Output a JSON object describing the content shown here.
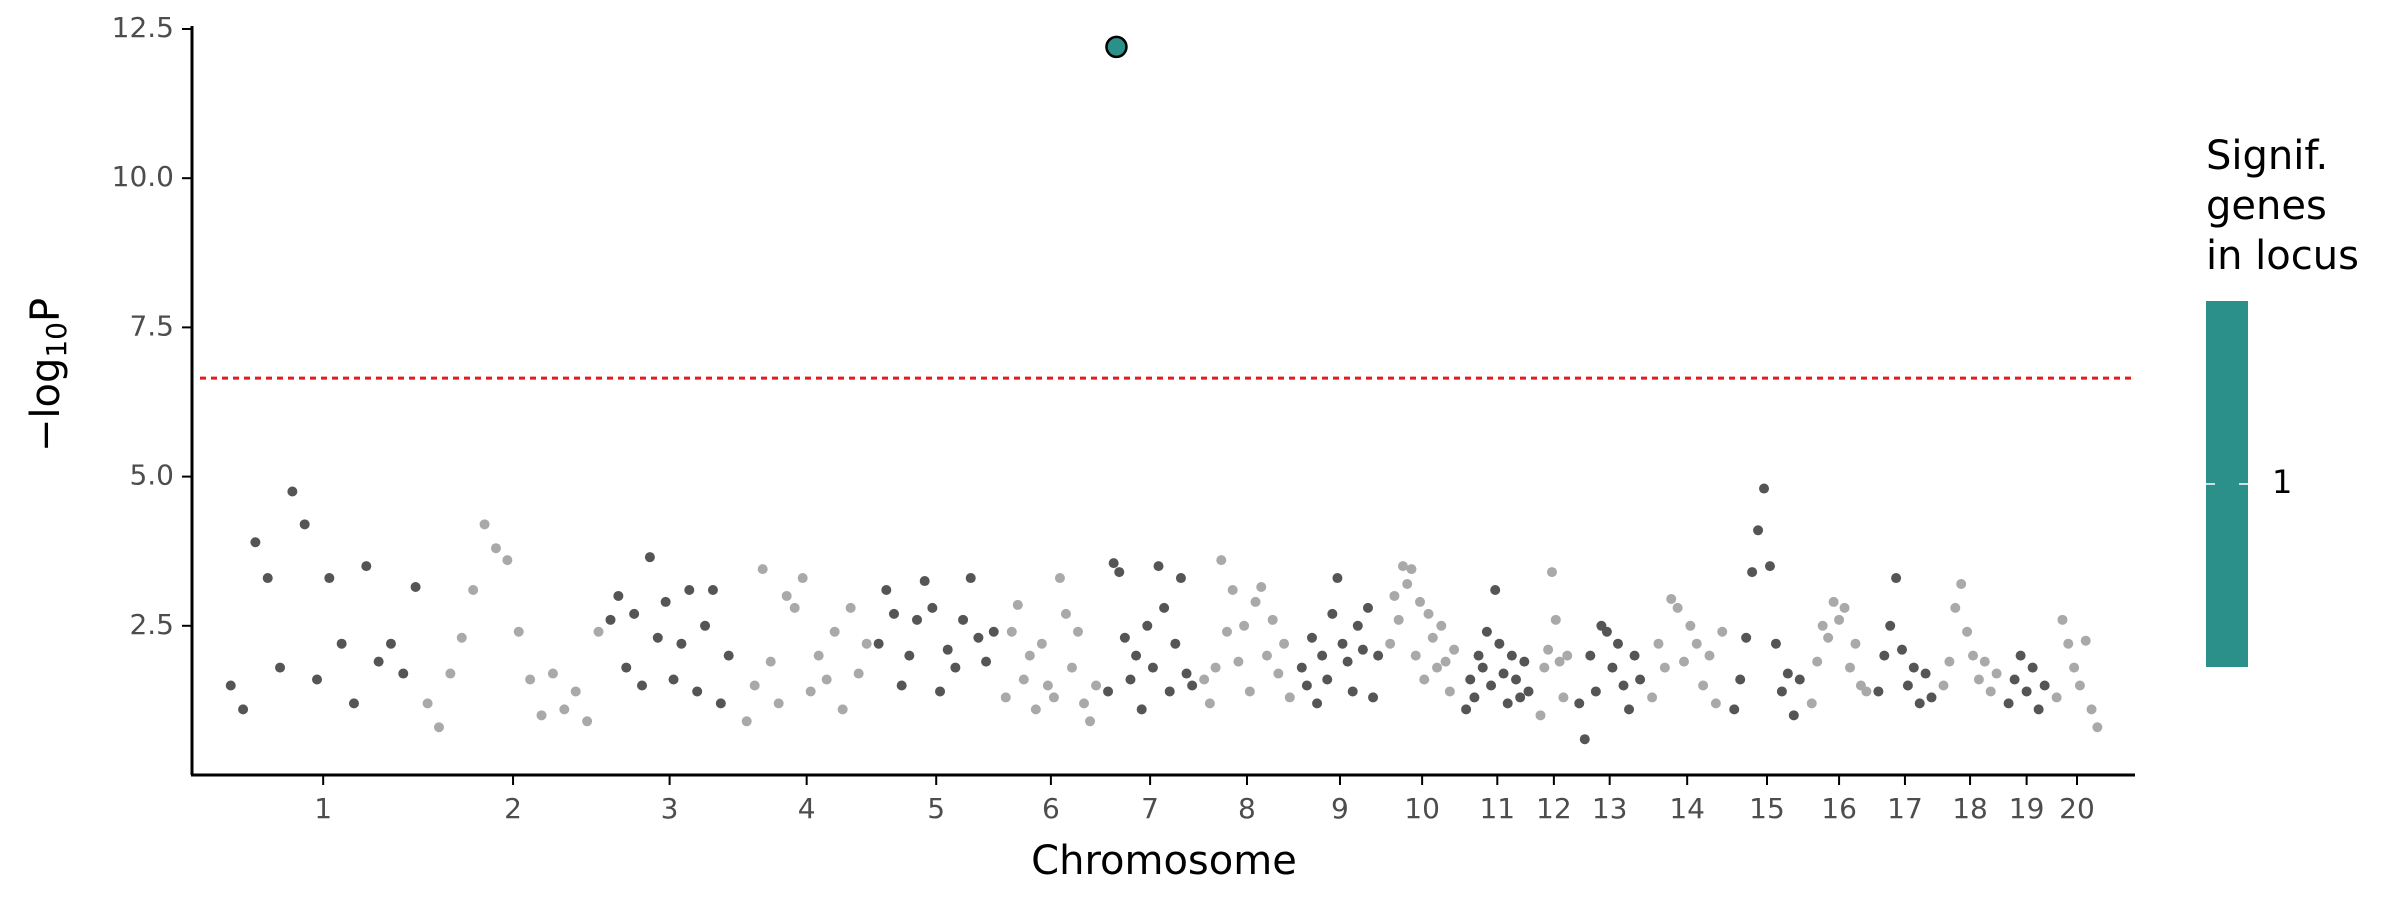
{
  "chart_data": {
    "type": "manhattan",
    "xlabel": "Chromosome",
    "ylabel": [
      "−log",
      "10",
      "P"
    ],
    "ylim": [
      0,
      12.55
    ],
    "yticks": [
      2.5,
      {
        "value": 5,
        "label": "5.0"
      },
      {
        "value": 7.5,
        "label": "7.5"
      },
      {
        "value": 10,
        "label": "10.0"
      },
      12.5
    ],
    "colors": [
      "#555555",
      "#a9a9a9"
    ],
    "threshold": {
      "value": 6.65,
      "color": "#e41a1c"
    },
    "highlight": {
      "category": "7",
      "value": 12.2,
      "color": "#2a9089"
    },
    "legend": {
      "title": [
        "Signif.",
        "genes",
        "in locus"
      ],
      "ticks": [
        1
      ],
      "color": "#2a9089"
    },
    "categories": [
      "1",
      "2",
      "3",
      "4",
      "5",
      "6",
      "7",
      "8",
      "9",
      "10",
      "11",
      "12",
      "13",
      "14",
      "15",
      "16",
      "17",
      "18",
      "19",
      "20"
    ],
    "values": [
      [
        1.5,
        1.1,
        3.9,
        3.3,
        1.8,
        4.75,
        4.2,
        1.6,
        3.3,
        2.2,
        1.2,
        3.5,
        1.9,
        2.2,
        1.7,
        3.15
      ],
      [
        1.2,
        0.8,
        1.7,
        2.3,
        3.1,
        4.2,
        3.8,
        3.6,
        2.4,
        1.6,
        1.0,
        1.7,
        1.1,
        1.4,
        0.9,
        2.4
      ],
      [
        2.6,
        3.0,
        1.8,
        2.7,
        1.5,
        3.65,
        2.3,
        2.9,
        1.6,
        2.2,
        3.1,
        1.4,
        2.5,
        3.1,
        1.2,
        2.0
      ],
      [
        0.9,
        1.5,
        3.45,
        1.9,
        1.2,
        3.0,
        2.8,
        3.3,
        1.4,
        2.0,
        1.6,
        2.4,
        1.1,
        2.8,
        1.7,
        2.2
      ],
      [
        2.2,
        3.1,
        2.7,
        1.5,
        2.0,
        2.6,
        3.25,
        2.8,
        1.4,
        2.1,
        1.8,
        2.6,
        3.3,
        2.3,
        1.9,
        2.4
      ],
      [
        1.3,
        2.4,
        2.85,
        1.6,
        2.0,
        1.1,
        2.2,
        1.5,
        1.3,
        3.3,
        2.7,
        1.8,
        2.4,
        1.2,
        0.9,
        1.5
      ],
      [
        1.4,
        3.55,
        3.4,
        2.3,
        1.6,
        2.0,
        1.1,
        2.5,
        1.8,
        3.5,
        2.8,
        1.4,
        2.2,
        3.3,
        1.7,
        1.5
      ],
      [
        1.6,
        1.2,
        1.8,
        3.6,
        2.4,
        3.1,
        1.9,
        2.5,
        1.4,
        2.9,
        3.15,
        2.0,
        2.6,
        1.7,
        2.2,
        1.3
      ],
      [
        1.8,
        1.5,
        2.3,
        1.2,
        2.0,
        1.6,
        2.7,
        3.3,
        2.2,
        1.9,
        1.4,
        2.5,
        2.1,
        2.8,
        1.3,
        2.0
      ],
      [
        2.2,
        3.0,
        2.6,
        3.5,
        3.2,
        3.45,
        2.0,
        2.9,
        1.6,
        2.7,
        2.3,
        1.8,
        2.5,
        1.9,
        1.4,
        2.1
      ],
      [
        1.1,
        1.6,
        1.3,
        2.0,
        1.8,
        2.4,
        1.5,
        3.1,
        2.2,
        1.7,
        1.2,
        2.0,
        1.6,
        1.3,
        1.9,
        1.4
      ],
      [
        1.0,
        1.8,
        2.1,
        3.4,
        2.6,
        1.9,
        1.3,
        2.0
      ],
      [
        1.2,
        0.6,
        2.0,
        1.4,
        2.5,
        2.4,
        1.8,
        2.2,
        1.5,
        1.1,
        2.0,
        1.6
      ],
      [
        1.3,
        2.2,
        1.8,
        2.95,
        2.8,
        1.9,
        2.5,
        2.2,
        1.5,
        2.0,
        1.2,
        2.4
      ],
      [
        1.1,
        1.6,
        2.3,
        3.4,
        4.1,
        4.8,
        3.5,
        2.2,
        1.4,
        1.7,
        1.0,
        1.6
      ],
      [
        1.2,
        1.9,
        2.5,
        2.3,
        2.9,
        2.6,
        2.8,
        1.8,
        2.2,
        1.5,
        1.4
      ],
      [
        1.4,
        2.0,
        2.5,
        3.3,
        2.1,
        1.5,
        1.8,
        1.2,
        1.7,
        1.3
      ],
      [
        1.5,
        1.9,
        2.8,
        3.2,
        2.4,
        2.0,
        1.6,
        1.9,
        1.4,
        1.7
      ],
      [
        1.2,
        1.6,
        2.0,
        1.4,
        1.8,
        1.1,
        1.5
      ],
      [
        1.3,
        2.6,
        2.2,
        1.8,
        1.5,
        2.25,
        1.1,
        0.8
      ]
    ]
  }
}
